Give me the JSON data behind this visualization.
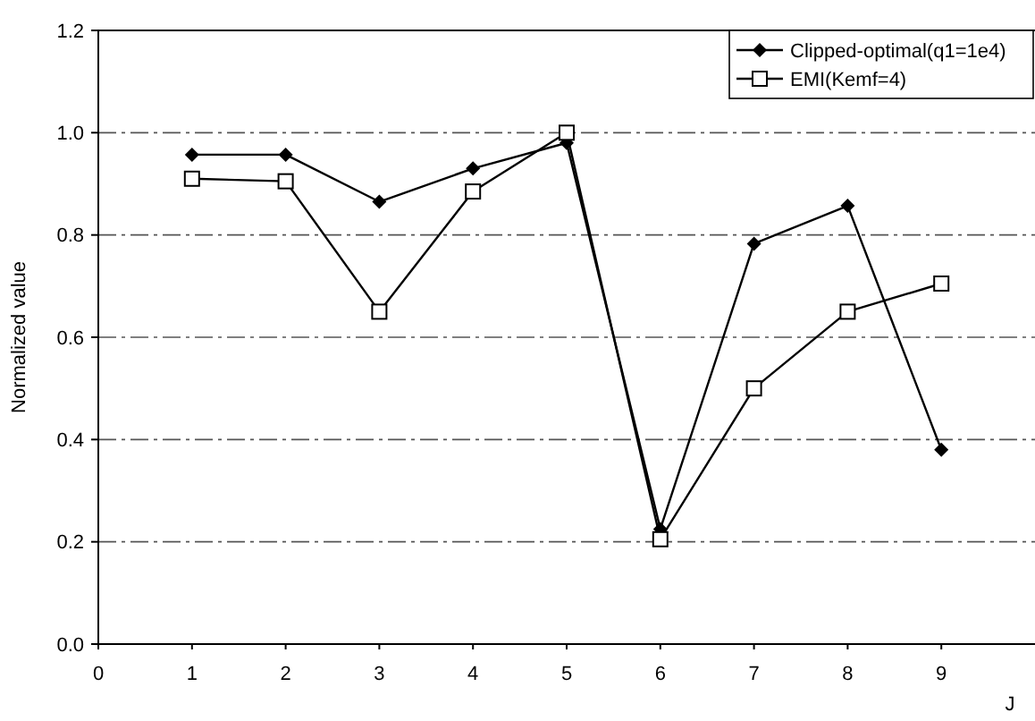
{
  "chart_data": {
    "type": "line",
    "xlabel": "J",
    "ylabel": "Normalized value",
    "x": [
      1,
      2,
      3,
      4,
      5,
      6,
      7,
      8,
      9
    ],
    "series": [
      {
        "name": "Clipped-optimal(q1=1e4)",
        "color": "#000000",
        "marker": "diamond",
        "values": [
          0.957,
          0.957,
          0.865,
          0.93,
          0.98,
          0.225,
          0.783,
          0.857,
          0.38
        ]
      },
      {
        "name": "EMI(Kemf=4)",
        "color": "#000000",
        "marker": "square",
        "values": [
          0.91,
          0.905,
          0.65,
          0.885,
          1.0,
          0.205,
          0.5,
          0.65,
          0.705
        ]
      }
    ],
    "xlim": [
      0,
      10
    ],
    "xticks": [
      0,
      1,
      2,
      3,
      4,
      5,
      6,
      7,
      8,
      9
    ],
    "ylim": [
      0,
      1.2
    ],
    "yticks": [
      {
        "value": 0,
        "label": "0.0"
      },
      0.2,
      0.4,
      0.6,
      0.8,
      {
        "value": 1,
        "label": "1.0"
      },
      1.2
    ],
    "grid": "y",
    "legend": "top right"
  }
}
